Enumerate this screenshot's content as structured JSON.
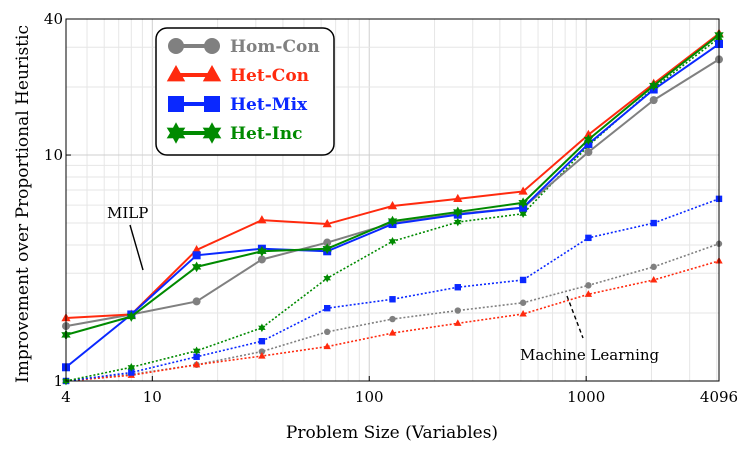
{
  "chart_data": {
    "type": "line",
    "xscale": "log",
    "yscale": "log",
    "xlabel": "Problem Size (Variables)",
    "ylabel": "Improvement over Proportional Heuristic",
    "xlim": [
      4,
      4096
    ],
    "ylim": [
      1,
      40
    ],
    "xticks": [
      4,
      10,
      100,
      1000,
      4096
    ],
    "xtick_labels": [
      "4",
      "10",
      "100",
      "1000",
      "4096"
    ],
    "yticks": [
      1,
      10,
      40
    ],
    "ytick_labels": [
      "1",
      "10",
      "40"
    ],
    "grid": true,
    "legend_position": "top-left",
    "x": [
      4,
      8,
      16,
      32,
      64,
      128,
      256,
      512,
      1024,
      2048,
      4096
    ],
    "series": [
      {
        "name": "Hom-Con",
        "color": "#808080",
        "marker": "circle",
        "method": "MILP",
        "linestyle": "solid",
        "values": [
          1.75,
          1.97,
          2.25,
          3.45,
          4.1,
          5.0,
          5.5,
          5.85,
          10.3,
          17.5,
          26.5
        ]
      },
      {
        "name": "Het-Con",
        "color": "#ff2a0e",
        "marker": "triangle",
        "method": "MILP",
        "linestyle": "solid",
        "values": [
          1.9,
          1.97,
          3.8,
          5.15,
          4.95,
          5.95,
          6.4,
          6.9,
          12.3,
          20.7,
          34.5
        ]
      },
      {
        "name": "Het-Mix",
        "color": "#0a28ff",
        "marker": "square",
        "method": "MILP",
        "linestyle": "solid",
        "values": [
          1.15,
          1.97,
          3.6,
          3.85,
          3.75,
          4.95,
          5.45,
          5.85,
          11.2,
          19.5,
          31.0
        ]
      },
      {
        "name": "Het-Inc",
        "color": "#008a00",
        "marker": "star",
        "method": "MILP",
        "linestyle": "solid",
        "values": [
          1.6,
          1.93,
          3.2,
          3.75,
          3.85,
          5.1,
          5.6,
          6.15,
          11.7,
          20.3,
          34.0
        ]
      },
      {
        "name": "Hom-Con",
        "color": "#808080",
        "marker": "circle",
        "method": "Machine Learning",
        "linestyle": "dotted",
        "values": [
          1.0,
          1.07,
          1.18,
          1.35,
          1.65,
          1.88,
          2.05,
          2.22,
          2.65,
          3.2,
          4.05
        ]
      },
      {
        "name": "Het-Con",
        "color": "#ff2a0e",
        "marker": "triangle",
        "method": "Machine Learning",
        "linestyle": "dotted",
        "values": [
          1.0,
          1.06,
          1.18,
          1.29,
          1.42,
          1.63,
          1.8,
          1.98,
          2.42,
          2.8,
          3.4
        ]
      },
      {
        "name": "Het-Mix",
        "color": "#0a28ff",
        "marker": "square",
        "method": "Machine Learning",
        "linestyle": "dotted",
        "values": [
          1.0,
          1.09,
          1.28,
          1.5,
          2.1,
          2.3,
          2.6,
          2.8,
          4.3,
          5.0,
          6.4
        ]
      },
      {
        "name": "Het-Inc",
        "color": "#008a00",
        "marker": "star",
        "method": "Machine Learning",
        "linestyle": "dotted",
        "values": [
          1.0,
          1.15,
          1.36,
          1.72,
          2.85,
          4.15,
          5.05,
          5.5,
          11.0,
          19.8,
          33.0
        ]
      }
    ],
    "annotations": [
      "MILP",
      "Machine Learning"
    ]
  }
}
